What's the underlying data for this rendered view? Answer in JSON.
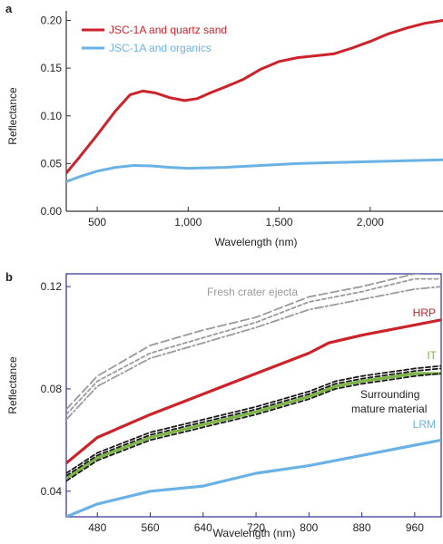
{
  "chart_data": [
    {
      "panel": "a",
      "type": "line",
      "xlabel": "Wavelength (nm)",
      "ylabel": "Reflectance",
      "xlim": [
        330,
        2400
      ],
      "ylim": [
        0.0,
        0.21
      ],
      "xticks": [
        500,
        1000,
        1500,
        2000
      ],
      "xtick_labels": [
        "500",
        "1,000",
        "1,500",
        "2,000"
      ],
      "yticks": [
        0.0,
        0.05,
        0.1,
        0.15,
        0.2
      ],
      "ytick_labels": [
        "0.00",
        "0.05",
        "0.10",
        "0.15",
        "0.20"
      ],
      "grid": false,
      "legend_position": "top-left",
      "series": [
        {
          "name": "JSC-1A and quartz sand",
          "color": "#cc2229",
          "x": [
            330,
            400,
            500,
            600,
            680,
            750,
            820,
            900,
            980,
            1050,
            1120,
            1200,
            1300,
            1400,
            1500,
            1600,
            1700,
            1800,
            1900,
            2000,
            2100,
            2200,
            2300,
            2400
          ],
          "y": [
            0.04,
            0.056,
            0.08,
            0.105,
            0.122,
            0.126,
            0.124,
            0.119,
            0.116,
            0.118,
            0.124,
            0.13,
            0.138,
            0.149,
            0.157,
            0.161,
            0.163,
            0.165,
            0.171,
            0.178,
            0.186,
            0.192,
            0.197,
            0.2
          ]
        },
        {
          "name": "JSC-1A and organics",
          "color": "#6ab2e5",
          "x": [
            330,
            400,
            500,
            600,
            700,
            800,
            900,
            1000,
            1100,
            1200,
            1400,
            1600,
            1800,
            2000,
            2200,
            2400
          ],
          "y": [
            0.031,
            0.036,
            0.042,
            0.046,
            0.048,
            0.0475,
            0.046,
            0.045,
            0.0455,
            0.046,
            0.048,
            0.05,
            0.051,
            0.052,
            0.053,
            0.054
          ]
        }
      ]
    },
    {
      "panel": "b",
      "type": "line",
      "xlabel": "Wavelength (nm)",
      "ylabel": "Reflectance",
      "xlim": [
        433,
        1000
      ],
      "ylim": [
        0.03,
        0.125
      ],
      "xticks": [
        480,
        560,
        640,
        720,
        800,
        880,
        960
      ],
      "xtick_labels": [
        "480",
        "560",
        "640",
        "720",
        "800",
        "880",
        "960"
      ],
      "yticks": [
        0.04,
        0.08,
        0.12
      ],
      "ytick_labels": [
        "0.04",
        "0.08",
        "0.12"
      ],
      "grid": false,
      "annotations": [
        "Fresh crater ejecta",
        "HRP",
        "IT",
        "Surrounding",
        "mature material",
        "LRM"
      ],
      "series": [
        {
          "name": "Fresh crater ejecta",
          "color": "#9a9a9a",
          "dash": "long",
          "x": [
            433,
            480,
            560,
            640,
            720,
            800,
            840,
            880,
            960,
            1000
          ],
          "y": [
            0.072,
            0.085,
            0.097,
            0.103,
            0.108,
            0.116,
            0.118,
            0.12,
            0.125,
            0.126
          ]
        },
        {
          "name": "Fresh crater ejecta",
          "color": "#9a9a9a",
          "dash": "short",
          "x": [
            433,
            480,
            560,
            640,
            720,
            800,
            840,
            880,
            960,
            1000
          ],
          "y": [
            0.07,
            0.083,
            0.094,
            0.1,
            0.106,
            0.114,
            0.116,
            0.118,
            0.123,
            0.123
          ]
        },
        {
          "name": "Fresh crater ejecta",
          "color": "#9a9a9a",
          "dash": "dashdot",
          "x": [
            433,
            480,
            560,
            640,
            720,
            800,
            840,
            880,
            960,
            1000
          ],
          "y": [
            0.068,
            0.081,
            0.092,
            0.098,
            0.104,
            0.111,
            0.113,
            0.115,
            0.119,
            0.12
          ]
        },
        {
          "name": "HRP",
          "color": "#cc2229",
          "dash": "solid",
          "x": [
            433,
            480,
            560,
            640,
            720,
            800,
            830,
            880,
            960,
            1000
          ],
          "y": [
            0.051,
            0.061,
            0.07,
            0.078,
            0.086,
            0.094,
            0.098,
            0.101,
            0.105,
            0.107
          ]
        },
        {
          "name": "IT",
          "color": "#7db544",
          "dash": "solid",
          "x": [
            433,
            480,
            560,
            640,
            720,
            800,
            840,
            880,
            960,
            1000
          ],
          "y": [
            0.045,
            0.053,
            0.061,
            0.066,
            0.071,
            0.077,
            0.081,
            0.083,
            0.086,
            0.086
          ]
        },
        {
          "name": "Surrounding mature material",
          "color": "#1a1a1a",
          "dash": "dashed",
          "x": [
            433,
            480,
            560,
            640,
            720,
            800,
            840,
            880,
            960,
            1000
          ],
          "y": [
            0.046,
            0.054,
            0.062,
            0.067,
            0.072,
            0.078,
            0.082,
            0.084,
            0.087,
            0.088
          ]
        },
        {
          "name": "Surrounding mature material",
          "color": "#1a1a1a",
          "dash": "dashed",
          "x": [
            433,
            480,
            560,
            640,
            720,
            800,
            840,
            880,
            960,
            1000
          ],
          "y": [
            0.044,
            0.052,
            0.06,
            0.065,
            0.07,
            0.076,
            0.08,
            0.082,
            0.085,
            0.086
          ]
        },
        {
          "name": "Surrounding mature material",
          "color": "#1a1a1a",
          "dash": "dashed",
          "x": [
            433,
            480,
            560,
            640,
            720,
            800,
            840,
            880,
            960,
            1000
          ],
          "y": [
            0.047,
            0.055,
            0.063,
            0.068,
            0.073,
            0.079,
            0.083,
            0.085,
            0.088,
            0.089
          ]
        },
        {
          "name": "LRM",
          "color": "#6ab2e5",
          "dash": "solid",
          "x": [
            433,
            480,
            560,
            640,
            720,
            800,
            880,
            960,
            1000
          ],
          "y": [
            0.03,
            0.035,
            0.04,
            0.042,
            0.047,
            0.05,
            0.054,
            0.058,
            0.06
          ]
        }
      ]
    }
  ]
}
